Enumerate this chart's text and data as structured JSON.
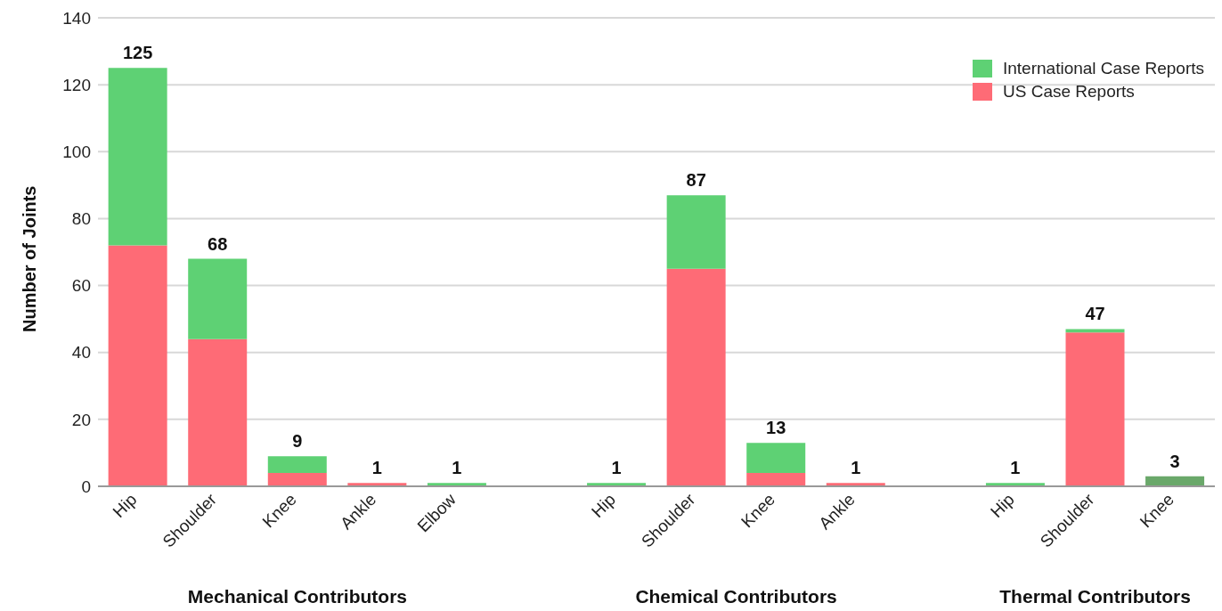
{
  "chart_data": {
    "type": "bar",
    "stacked": true,
    "ylabel": "Number of Joints",
    "categories": [
      "Hip",
      "Shoulder",
      "Knee",
      "Ankle",
      "Elbow",
      null,
      "Hip",
      "Shoulder",
      "Knee",
      "Ankle",
      null,
      "Hip",
      "Shoulder",
      "Knee"
    ],
    "series": [
      {
        "name": "US Case Reports",
        "color": "#fe6b76",
        "values": [
          72,
          44,
          4,
          1,
          0,
          null,
          0,
          65,
          4,
          1,
          null,
          0,
          46,
          0
        ]
      },
      {
        "name": "International Case Reports",
        "color": "#5ed174",
        "colors": [
          "#5ed174",
          "#5ed174",
          "#5ed174",
          "#5ed174",
          "#5ed174",
          null,
          "#5ed174",
          "#5ed174",
          "#5ed174",
          "#5ed174",
          null,
          "#5ed174",
          "#5ed174",
          "#6aa86a"
        ],
        "values": [
          53,
          24,
          5,
          0,
          1,
          null,
          1,
          22,
          9,
          0,
          null,
          1,
          1,
          3
        ]
      }
    ],
    "totals": [
      "125",
      "68",
      "9",
      "1",
      "1",
      null,
      "1",
      "87",
      "13",
      "1",
      null,
      "1",
      "47",
      "3"
    ],
    "ylim": [
      0,
      140
    ],
    "yticks": [
      0,
      20,
      40,
      60,
      80,
      100,
      120,
      140
    ],
    "grid": "y",
    "legend": "top right",
    "annotations": [
      "Mechanical Contributors",
      "Chemical Contributors",
      "Thermal Contributors"
    ]
  }
}
